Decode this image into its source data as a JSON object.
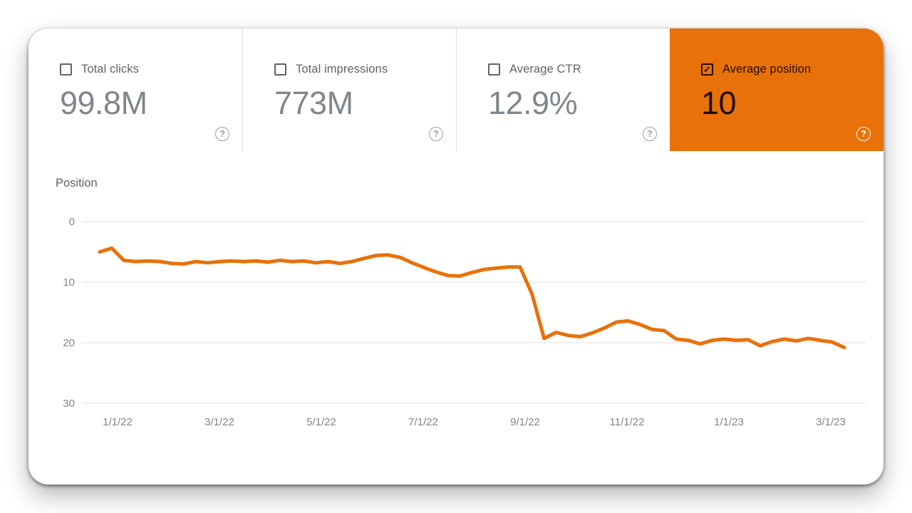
{
  "icons": {
    "help_glyph": "?",
    "check_glyph": "✓"
  },
  "colors": {
    "accent_orange": "#e8710a",
    "label_gray": "#5f6368",
    "value_gray": "#80868b",
    "gridline": "#e2e2e2",
    "divider": "#dadce0"
  },
  "metric_cards": [
    {
      "label": "Total clicks",
      "value": "99.8M",
      "checked": false
    },
    {
      "label": "Total impressions",
      "value": "773M",
      "checked": false
    },
    {
      "label": "Average CTR",
      "value": "12.9%",
      "checked": false
    },
    {
      "label": "Average position",
      "value": "10",
      "checked": true
    }
  ],
  "chart_data": {
    "type": "line",
    "title": "Position",
    "ylabel": "Position",
    "xlabel": "",
    "ylim": [
      0,
      30
    ],
    "y_increases_downward": true,
    "y_ticks": [
      0,
      10,
      20,
      30
    ],
    "grid": "horizontal",
    "x_tick_labels": [
      "1/1/22",
      "3/1/22",
      "5/1/22",
      "7/1/22",
      "9/1/22",
      "11/1/22",
      "1/1/23",
      "3/1/23"
    ],
    "series": [
      {
        "name": "Average position",
        "color": "#e8710a",
        "values": [
          5.0,
          4.4,
          6.4,
          6.6,
          6.5,
          6.6,
          6.9,
          7.0,
          6.6,
          6.8,
          6.6,
          6.5,
          6.6,
          6.5,
          6.7,
          6.4,
          6.6,
          6.5,
          6.8,
          6.6,
          6.9,
          6.6,
          6.1,
          5.6,
          5.5,
          5.9,
          6.8,
          7.6,
          8.3,
          8.9,
          9.0,
          8.4,
          7.9,
          7.7,
          7.5,
          7.5,
          12.0,
          19.3,
          18.3,
          18.8,
          19.0,
          18.4,
          17.6,
          16.6,
          16.4,
          17.0,
          17.8,
          18.0,
          19.4,
          19.6,
          20.2,
          19.6,
          19.4,
          19.6,
          19.5,
          20.5,
          19.8,
          19.4,
          19.7,
          19.3,
          19.6,
          19.9,
          20.8
        ]
      }
    ]
  }
}
